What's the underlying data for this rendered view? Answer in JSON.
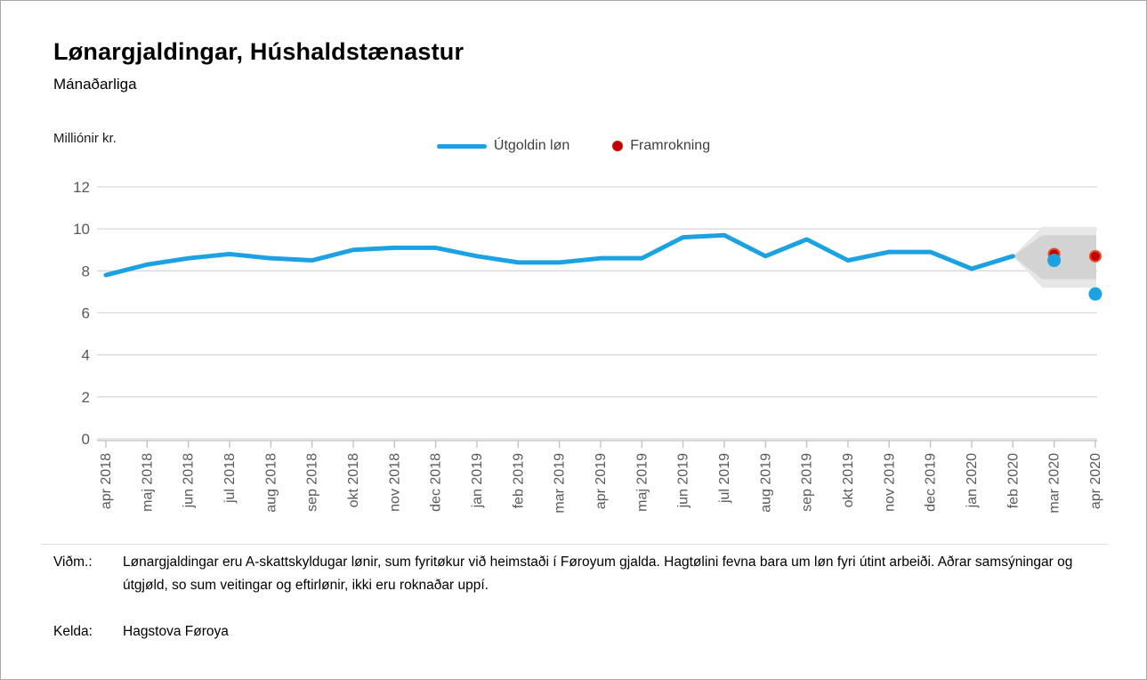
{
  "header": {
    "title": "Lønargjaldingar, Húshaldstænastur",
    "subtitle": "Mánaðarliga"
  },
  "chart_data": {
    "type": "line",
    "title": "Lønargjaldingar, Húshaldstænastur",
    "subtitle": "Mánaðarliga",
    "ylabel": "Milliónir kr.",
    "xlabel": "",
    "ylim": [
      0,
      12
    ],
    "yticks": [
      0,
      2,
      4,
      6,
      8,
      10,
      12
    ],
    "grid": true,
    "legend_position": "top-center",
    "grid_color": "#d9d9d9",
    "axis_color": "#bfbfbf",
    "tick_label_color": "#595959",
    "categories": [
      "apr 2018",
      "maj 2018",
      "jun 2018",
      "jul 2018",
      "aug 2018",
      "sep 2018",
      "okt 2018",
      "nov 2018",
      "dec 2018",
      "jan 2019",
      "feb 2019",
      "mar 2019",
      "apr 2019",
      "maj 2019",
      "jun 2019",
      "jul 2019",
      "aug 2019",
      "sep 2019",
      "okt 2019",
      "nov 2019",
      "dec 2019",
      "jan 2020",
      "feb 2020",
      "mar 2020",
      "apr 2020"
    ],
    "series": [
      {
        "name": "Útgoldin løn",
        "type": "line",
        "color": "#1ca2e2",
        "values": [
          7.8,
          8.3,
          8.6,
          8.8,
          8.6,
          8.5,
          9.0,
          9.1,
          9.1,
          8.7,
          8.4,
          8.4,
          8.6,
          8.6,
          9.6,
          9.7,
          8.7,
          9.5,
          8.5,
          8.9,
          8.9,
          8.1,
          8.7,
          null,
          null
        ],
        "detached_points": [
          {
            "category": "mar 2020",
            "value": 8.5
          },
          {
            "category": "apr 2020",
            "value": 6.9
          }
        ]
      },
      {
        "name": "Framrokning",
        "type": "scatter",
        "color": "#c00000",
        "ring_color": "#e4502a",
        "points": [
          {
            "category": "mar 2020",
            "value": 8.8
          },
          {
            "category": "apr 2020",
            "value": 8.7
          }
        ]
      }
    ],
    "forecast_band": {
      "start_category": "feb 2020",
      "start_value": 8.7,
      "outer_range": [
        7.2,
        10.1
      ],
      "inner_range": [
        7.6,
        9.7
      ],
      "outer_color": "#e7e7e7",
      "inner_color": "#d3d3d3"
    }
  },
  "footer": {
    "note_label": "Viðm.:",
    "note_text": "Lønargjaldingar eru A-skattskyldugar lønir, sum fyritøkur við heimstaði í Føroyum gjalda. Hagtølini fevna bara um løn fyri útint arbeiði. Aðrar samsýningar og útgjøld, so sum veitingar og eftirlønir, ikki eru roknaðar uppí.",
    "source_label": "Kelda:",
    "source_text": "Hagstova Føroya"
  }
}
